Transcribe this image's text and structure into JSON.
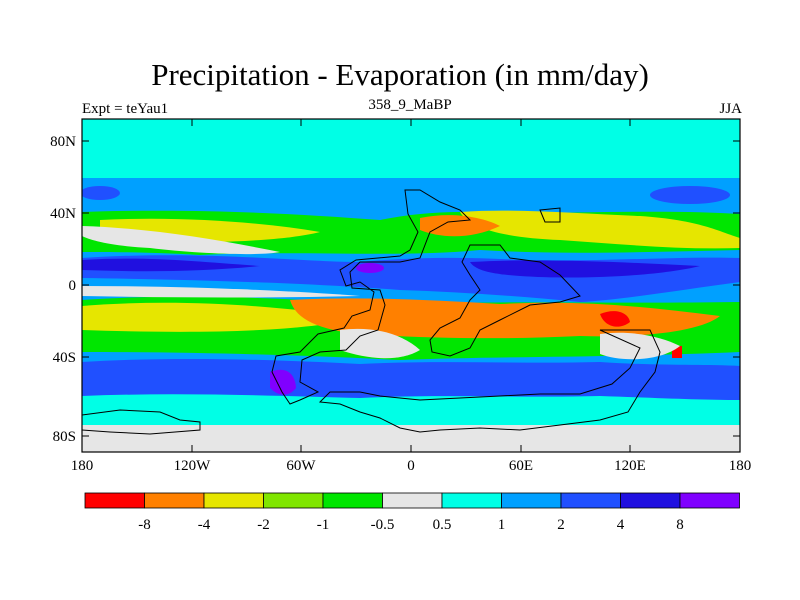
{
  "title": "Precipitation - Evaporation (in mm/day)",
  "left_label": "Expt = teYau1",
  "center_label": "358_9_MaBP",
  "right_label": "JJA",
  "lat_ticks": [
    "80N",
    "40N",
    "0",
    "40S",
    "80S"
  ],
  "lon_ticks": [
    "180",
    "120W",
    "60W",
    "0",
    "60E",
    "120E",
    "180"
  ],
  "colorbar": {
    "labels": [
      "-8",
      "-4",
      "-2",
      "-1",
      "-0.5",
      "0.5",
      "1",
      "2",
      "4",
      "8"
    ],
    "colors": [
      "#ff0000",
      "#ff8000",
      "#e6e600",
      "#80e600",
      "#00e600",
      "#e6e6e6",
      "#00ffe6",
      "#00a0ff",
      "#2050ff",
      "#2010e0",
      "#8000ff"
    ]
  },
  "colors": {
    "ocean_background": "#00a0ff",
    "continent_outline": "#000000"
  }
}
